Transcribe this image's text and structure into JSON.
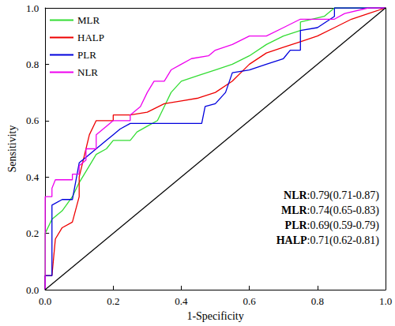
{
  "chart_data": {
    "type": "line",
    "x_label": "1-Specificity",
    "y_label": "Sensitivity",
    "xlim": [
      0,
      1
    ],
    "ylim": [
      0,
      1
    ],
    "xticks": [
      {
        "value": 0,
        "label": "0.0"
      },
      0.2,
      0.4,
      0.6,
      0.8,
      {
        "value": 1,
        "label": "1.0"
      }
    ],
    "yticks": [
      {
        "value": 0,
        "label": "0.0"
      },
      0.2,
      0.4,
      0.6,
      0.8,
      {
        "value": 1,
        "label": "1.0"
      }
    ],
    "legend": "upper left",
    "grid": false,
    "line_style": "step",
    "series": [
      {
        "name": "MLR",
        "color": "#33dd33",
        "x": [
          0,
          0,
          0.02,
          0.05,
          0.08,
          0.1,
          0.12,
          0.15,
          0.18,
          0.2,
          0.25,
          0.27,
          0.3,
          0.33,
          0.35,
          0.37,
          0.4,
          0.45,
          0.5,
          0.55,
          0.6,
          0.65,
          0.7,
          0.75,
          0.75,
          0.82,
          0.85,
          1
        ],
        "values": [
          0,
          0.2,
          0.25,
          0.28,
          0.33,
          0.38,
          0.42,
          0.48,
          0.5,
          0.53,
          0.53,
          0.56,
          0.58,
          0.6,
          0.65,
          0.7,
          0.74,
          0.76,
          0.78,
          0.8,
          0.83,
          0.87,
          0.9,
          0.92,
          0.95,
          0.97,
          1,
          1
        ]
      },
      {
        "name": "HALP",
        "color": "#ee0000",
        "x": [
          0,
          0,
          0.02,
          0.03,
          0.05,
          0.08,
          0.1,
          0.1,
          0.12,
          0.13,
          0.15,
          0.2,
          0.2,
          0.25,
          0.3,
          0.35,
          0.4,
          0.45,
          0.5,
          0.55,
          0.6,
          0.65,
          0.7,
          0.75,
          0.8,
          0.85,
          0.9,
          0.95,
          1
        ],
        "values": [
          0,
          0.05,
          0.05,
          0.18,
          0.22,
          0.24,
          0.33,
          0.4,
          0.5,
          0.55,
          0.6,
          0.6,
          0.62,
          0.62,
          0.63,
          0.66,
          0.67,
          0.68,
          0.7,
          0.74,
          0.8,
          0.84,
          0.86,
          0.88,
          0.9,
          0.93,
          0.96,
          0.98,
          1
        ]
      },
      {
        "name": "PLR",
        "color": "#0000dd",
        "x": [
          0,
          0,
          0.02,
          0.02,
          0.05,
          0.08,
          0.1,
          0.12,
          0.15,
          0.18,
          0.2,
          0.22,
          0.25,
          0.3,
          0.46,
          0.47,
          0.5,
          0.53,
          0.55,
          0.6,
          0.65,
          0.7,
          0.72,
          0.75,
          0.75,
          0.8,
          0.85,
          0.85,
          1
        ],
        "values": [
          0,
          0.05,
          0.05,
          0.3,
          0.32,
          0.32,
          0.45,
          0.47,
          0.5,
          0.53,
          0.55,
          0.57,
          0.59,
          0.59,
          0.59,
          0.65,
          0.66,
          0.7,
          0.77,
          0.78,
          0.8,
          0.82,
          0.85,
          0.85,
          0.92,
          0.93,
          0.97,
          1,
          1
        ]
      },
      {
        "name": "NLR",
        "color": "#ee00ee",
        "x": [
          0,
          0,
          0.02,
          0.02,
          0.03,
          0.08,
          0.08,
          0.1,
          0.1,
          0.12,
          0.12,
          0.15,
          0.15,
          0.18,
          0.2,
          0.25,
          0.25,
          0.28,
          0.3,
          0.32,
          0.35,
          0.37,
          0.4,
          0.43,
          0.48,
          0.5,
          0.55,
          0.6,
          0.65,
          0.7,
          0.75,
          0.85,
          0.88,
          0.95,
          1
        ],
        "values": [
          0,
          0.33,
          0.33,
          0.36,
          0.39,
          0.39,
          0.41,
          0.41,
          0.44,
          0.46,
          0.5,
          0.5,
          0.55,
          0.58,
          0.6,
          0.6,
          0.62,
          0.65,
          0.7,
          0.74,
          0.74,
          0.78,
          0.8,
          0.82,
          0.83,
          0.85,
          0.87,
          0.9,
          0.9,
          0.93,
          0.96,
          0.96,
          0.98,
          1,
          1
        ]
      }
    ],
    "diagonal": {
      "x": [
        0,
        1
      ],
      "values": [
        0,
        1
      ],
      "color": "#000000"
    },
    "annotations": [
      "NLR:0.79(0.71-0.87)",
      "MLR:0.74(0.65-0.83)",
      "PLR:0.69(0.59-0.79)",
      "HALP:0.71(0.62-0.81)"
    ]
  }
}
